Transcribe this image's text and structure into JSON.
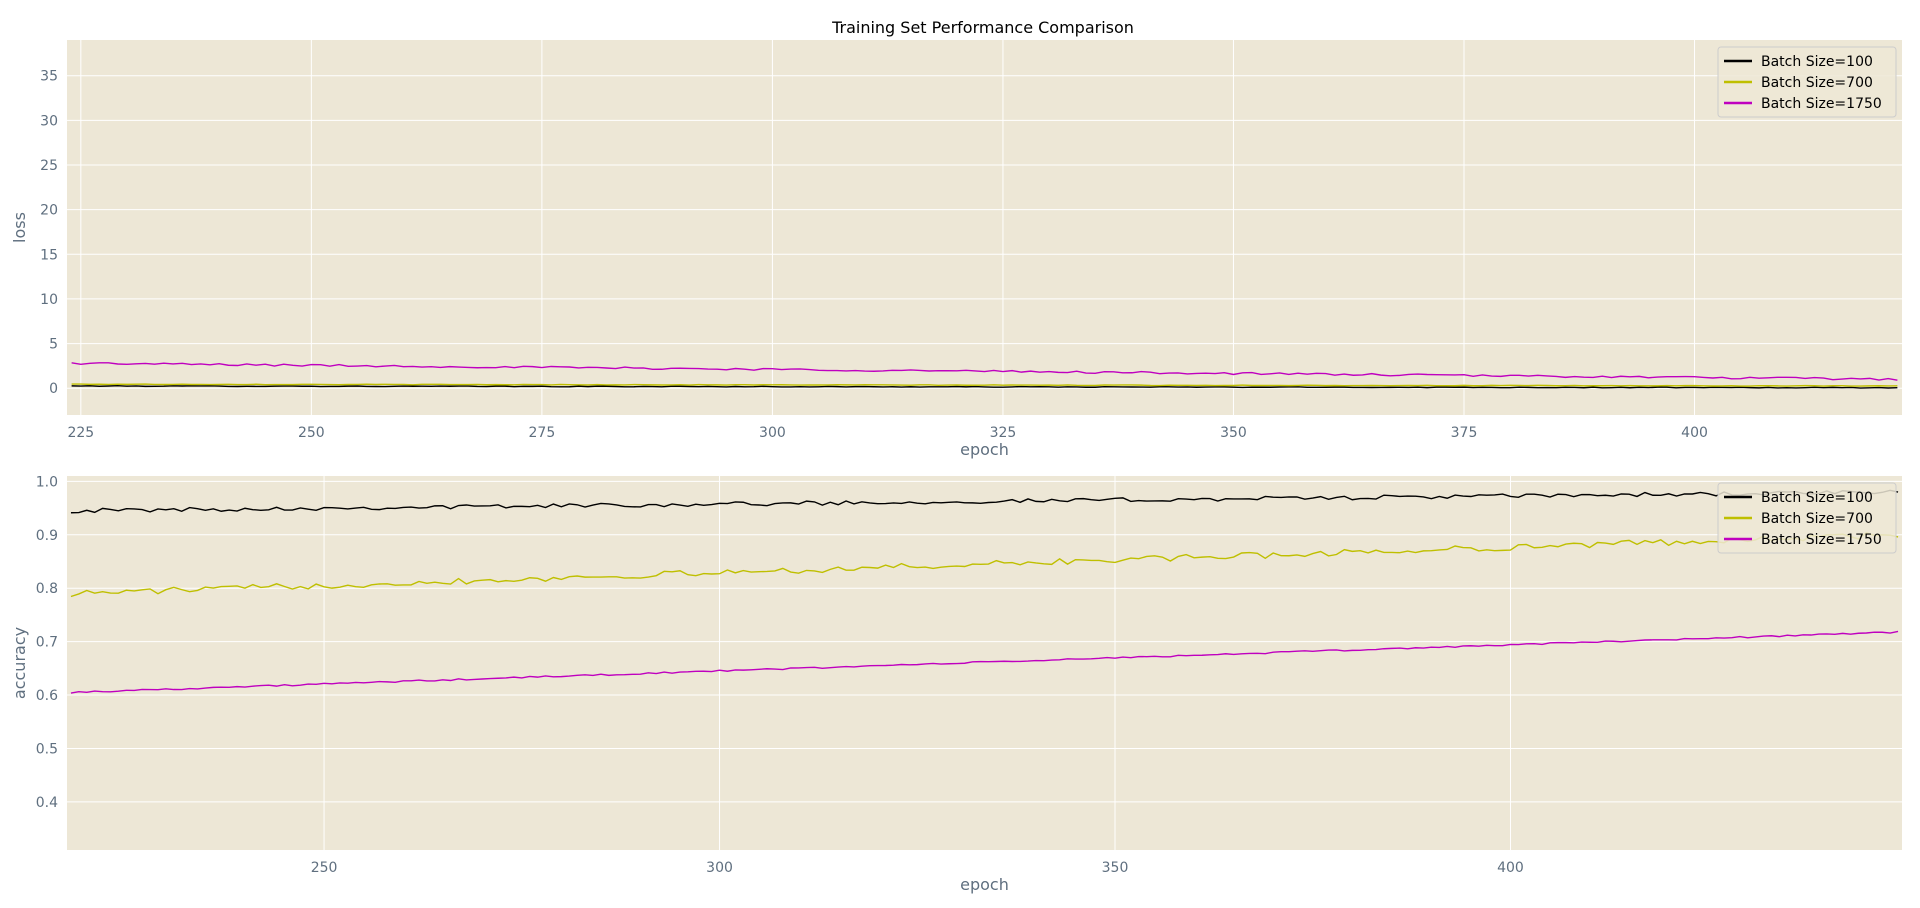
{
  "figure": {
    "title": "Training Set Performance Comparison"
  },
  "colors": {
    "background": "#ede7d6",
    "grid": "#ffffff",
    "axis_text": "#5f6f7f",
    "series": [
      "#000000",
      "#bfbf00",
      "#bf00bf"
    ]
  },
  "chart_data": [
    {
      "type": "line",
      "title": "Training Set Performance Comparison",
      "xlabel": "epoch",
      "ylabel": "loss",
      "xlim": [
        223.5,
        422.5
      ],
      "ylim": [
        -3,
        39
      ],
      "xticks": [
        225,
        250,
        275,
        300,
        325,
        350,
        375,
        400
      ],
      "yticks": [
        0,
        5,
        10,
        15,
        20,
        25,
        30,
        35
      ],
      "ytick_labels": [
        "0",
        "5",
        "10",
        "15",
        "20",
        "25",
        "30",
        "35"
      ],
      "grid": true,
      "legend": "top-right",
      "x_start": 224,
      "x_end": 422,
      "series": [
        {
          "name": "Batch Size=100",
          "start": 0.25,
          "end": 0.05,
          "noise": 0.04
        },
        {
          "name": "Batch Size=700",
          "start": 0.45,
          "end": 0.25,
          "noise": 0.03
        },
        {
          "name": "Batch Size=1750",
          "start": 2.8,
          "end": 1.0,
          "noise": 0.12
        }
      ]
    },
    {
      "type": "line",
      "xlabel": "epoch",
      "ylabel": "accuracy",
      "xlim": [
        217.5,
        449.5
      ],
      "ylim": [
        0.31,
        1.01
      ],
      "xticks": [
        250,
        300,
        350,
        400
      ],
      "yticks": [
        0.4,
        0.5,
        0.6,
        0.7,
        0.8,
        0.9,
        1.0
      ],
      "ytick_labels": [
        "0.4",
        "0.5",
        "0.6",
        "0.7",
        "0.8",
        "0.9",
        "1.0"
      ],
      "grid": true,
      "legend": "top-right",
      "x_start": 218,
      "x_end": 449,
      "series": [
        {
          "name": "Batch Size=100",
          "start": 0.945,
          "end": 0.98,
          "noise": 0.004
        },
        {
          "name": "Batch Size=700",
          "start": 0.79,
          "end": 0.9,
          "noise": 0.006
        },
        {
          "name": "Batch Size=1750",
          "start": 0.605,
          "end": 0.718,
          "noise": 0.0015
        }
      ]
    }
  ]
}
